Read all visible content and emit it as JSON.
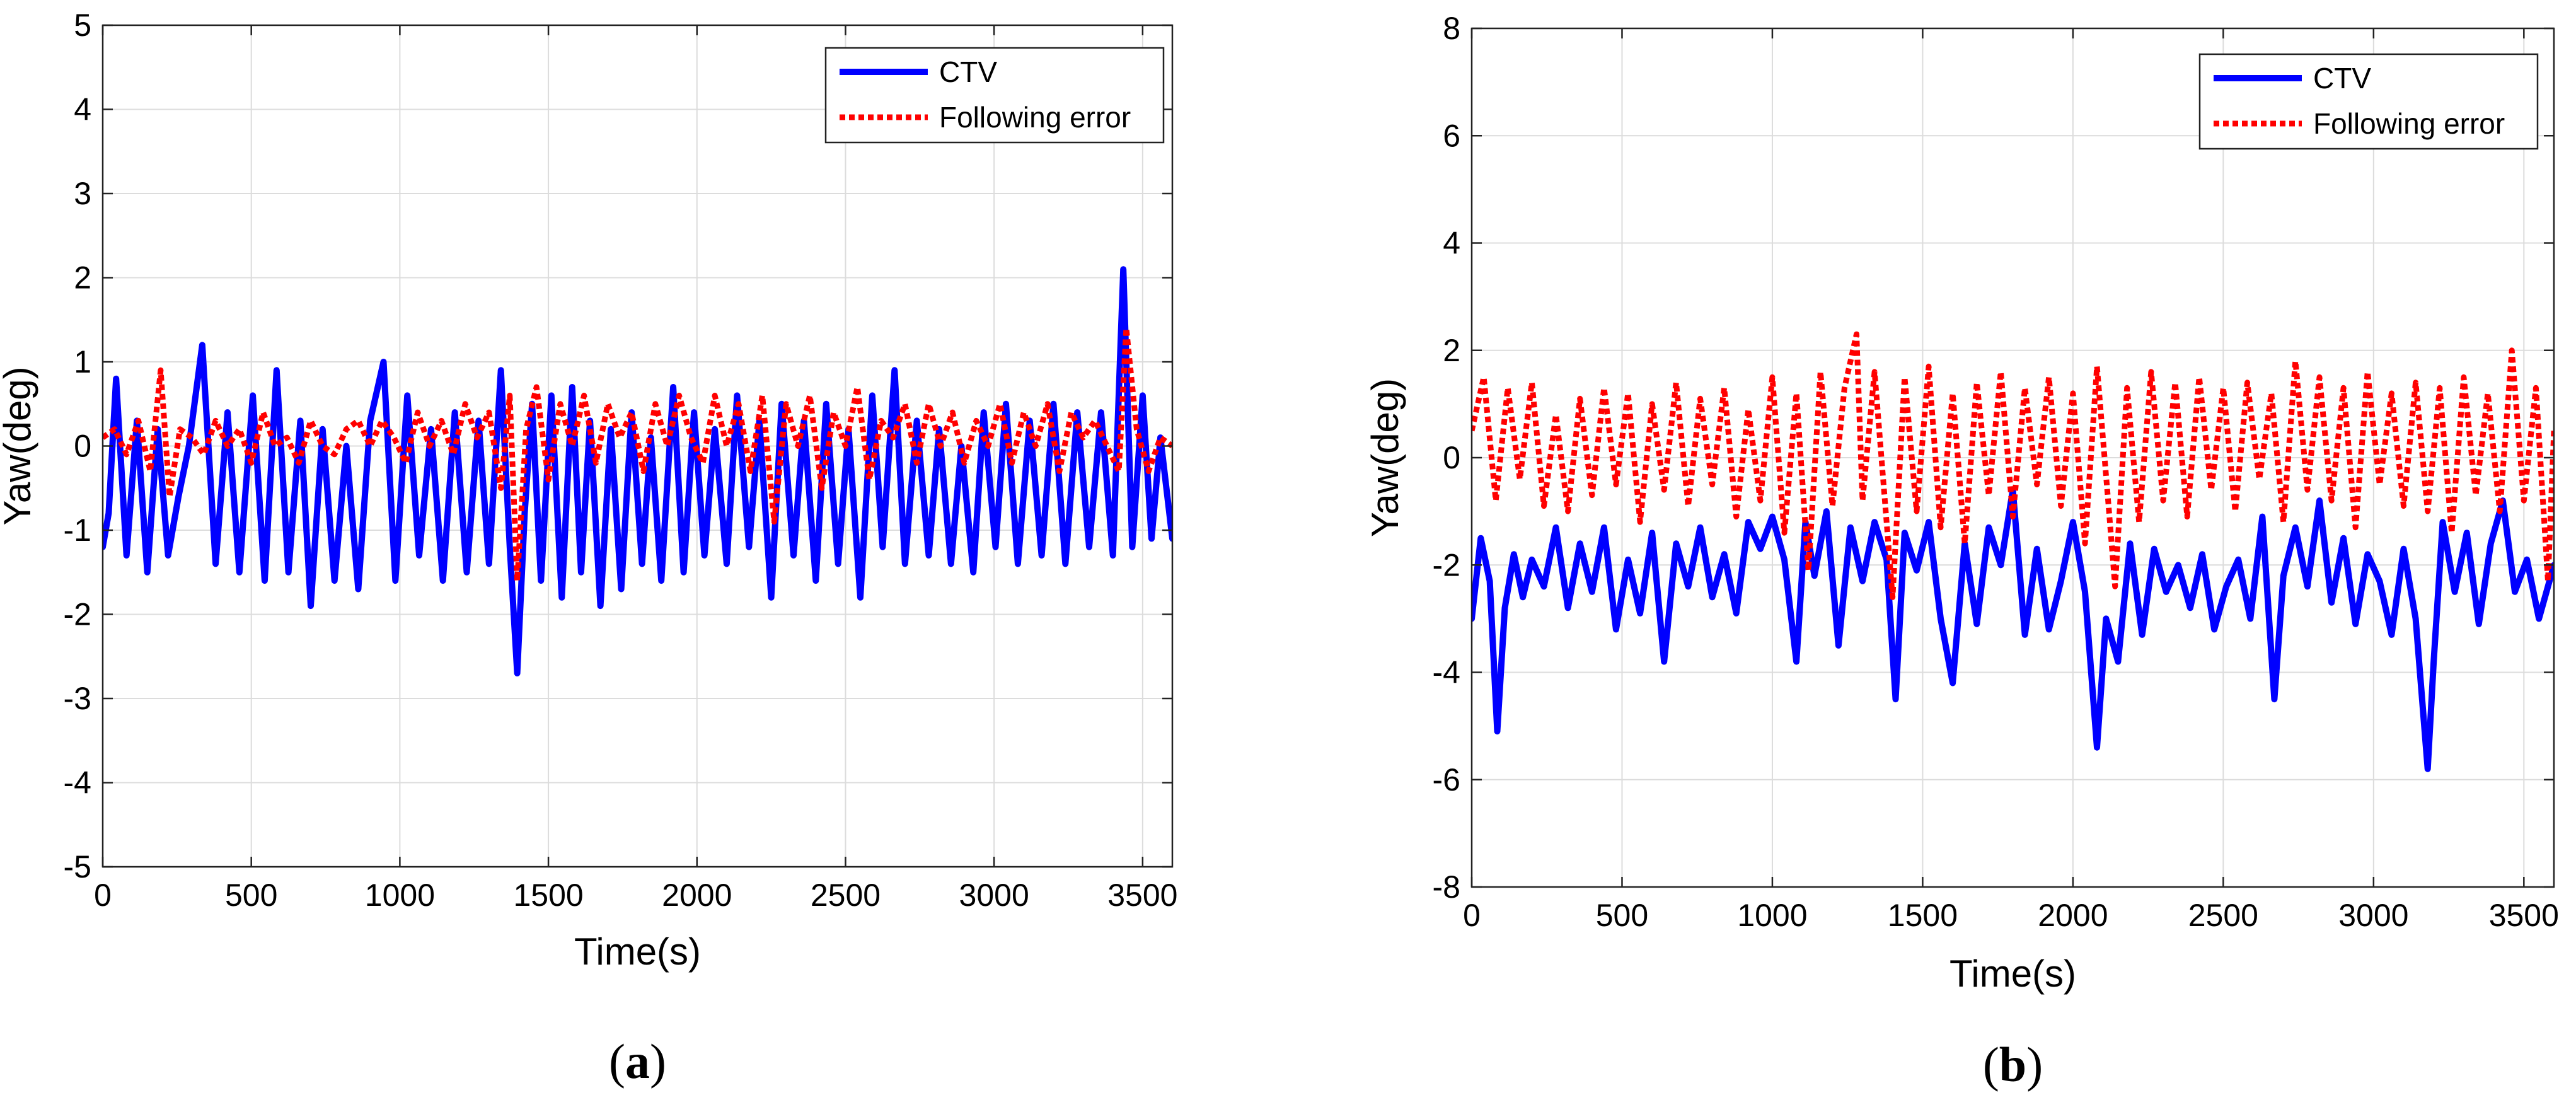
{
  "chart_data": [
    {
      "type": "line",
      "panel": "(a)",
      "panel_letter": "a",
      "xlabel": "Time(s)",
      "ylabel": "Yaw(deg)",
      "xlim": [
        0,
        3600
      ],
      "ylim": [
        -5,
        5
      ],
      "xticks": [
        0,
        500,
        1000,
        1500,
        2000,
        2500,
        3000,
        3500
      ],
      "yticks": [
        -5,
        -4,
        -3,
        -2,
        -1,
        0,
        1,
        2,
        3,
        4,
        5
      ],
      "grid": true,
      "legend_position": "top-right",
      "series": [
        {
          "name": "CTV",
          "style": "solid",
          "color": "#0000ff",
          "x": [
            0,
            20,
            45,
            80,
            115,
            150,
            185,
            220,
            255,
            290,
            335,
            380,
            420,
            460,
            505,
            545,
            585,
            625,
            665,
            700,
            740,
            780,
            820,
            860,
            900,
            945,
            985,
            1025,
            1065,
            1105,
            1145,
            1185,
            1225,
            1265,
            1300,
            1340,
            1370,
            1395,
            1420,
            1445,
            1475,
            1510,
            1545,
            1580,
            1610,
            1640,
            1675,
            1710,
            1745,
            1780,
            1815,
            1845,
            1880,
            1920,
            1955,
            1990,
            2025,
            2060,
            2100,
            2135,
            2175,
            2210,
            2250,
            2285,
            2325,
            2360,
            2400,
            2435,
            2475,
            2510,
            2550,
            2590,
            2625,
            2665,
            2700,
            2740,
            2780,
            2815,
            2855,
            2890,
            2930,
            2965,
            3005,
            3040,
            3080,
            3120,
            3160,
            3200,
            3240,
            3280,
            3320,
            3360,
            3400,
            3435,
            3465,
            3500,
            3530,
            3560,
            3600
          ],
          "y": [
            -1.2,
            -0.8,
            0.8,
            -1.3,
            0.3,
            -1.5,
            0.2,
            -1.3,
            -0.6,
            0.0,
            1.2,
            -1.4,
            0.4,
            -1.5,
            0.6,
            -1.6,
            0.9,
            -1.5,
            0.3,
            -1.9,
            0.2,
            -1.6,
            0.0,
            -1.7,
            0.3,
            1.0,
            -1.6,
            0.6,
            -1.3,
            0.2,
            -1.6,
            0.4,
            -1.5,
            0.3,
            -1.4,
            0.9,
            -1.2,
            -2.7,
            -0.8,
            0.5,
            -1.6,
            0.6,
            -1.8,
            0.7,
            -1.5,
            0.3,
            -1.9,
            0.2,
            -1.7,
            0.4,
            -1.4,
            0.1,
            -1.6,
            0.7,
            -1.5,
            0.4,
            -1.3,
            0.2,
            -1.4,
            0.6,
            -1.2,
            0.3,
            -1.8,
            0.5,
            -1.3,
            0.3,
            -1.6,
            0.5,
            -1.4,
            0.2,
            -1.8,
            0.6,
            -1.2,
            0.9,
            -1.4,
            0.3,
            -1.3,
            0.2,
            -1.4,
            0.0,
            -1.5,
            0.4,
            -1.2,
            0.5,
            -1.4,
            0.3,
            -1.3,
            0.5,
            -1.4,
            0.4,
            -1.2,
            0.4,
            -1.3,
            2.1,
            -1.2,
            0.6,
            -1.1,
            0.1,
            -1.1
          ]
        },
        {
          "name": "Following error",
          "style": "dotted",
          "color": "#ff0000",
          "x": [
            0,
            40,
            80,
            120,
            160,
            195,
            225,
            260,
            300,
            340,
            380,
            420,
            460,
            500,
            540,
            580,
            620,
            660,
            700,
            740,
            780,
            820,
            860,
            900,
            940,
            980,
            1020,
            1060,
            1100,
            1140,
            1180,
            1220,
            1260,
            1300,
            1340,
            1370,
            1395,
            1425,
            1460,
            1500,
            1540,
            1580,
            1620,
            1660,
            1700,
            1740,
            1780,
            1820,
            1860,
            1900,
            1940,
            1980,
            2020,
            2060,
            2100,
            2140,
            2180,
            2220,
            2260,
            2300,
            2340,
            2380,
            2420,
            2460,
            2500,
            2540,
            2580,
            2620,
            2660,
            2700,
            2740,
            2780,
            2820,
            2860,
            2900,
            2940,
            2980,
            3020,
            3060,
            3100,
            3140,
            3180,
            3220,
            3260,
            3300,
            3340,
            3380,
            3420,
            3445,
            3480,
            3520,
            3560,
            3600
          ],
          "y": [
            0.1,
            0.2,
            -0.1,
            0.3,
            -0.3,
            0.9,
            -0.6,
            0.2,
            0.1,
            -0.1,
            0.3,
            0.0,
            0.2,
            -0.2,
            0.4,
            0.0,
            0.1,
            -0.2,
            0.3,
            0.0,
            -0.1,
            0.2,
            0.3,
            0.0,
            0.3,
            0.1,
            -0.2,
            0.4,
            0.0,
            0.3,
            -0.1,
            0.5,
            0.1,
            0.4,
            -0.5,
            0.6,
            -1.6,
            0.2,
            0.7,
            -0.4,
            0.5,
            0.0,
            0.6,
            -0.2,
            0.5,
            0.1,
            0.4,
            -0.3,
            0.5,
            0.0,
            0.6,
            0.1,
            -0.2,
            0.6,
            0.0,
            0.5,
            -0.3,
            0.6,
            -0.9,
            0.5,
            0.0,
            0.6,
            -0.5,
            0.4,
            0.0,
            0.7,
            -0.4,
            0.3,
            0.1,
            0.5,
            -0.2,
            0.5,
            0.0,
            0.4,
            -0.2,
            0.3,
            0.0,
            0.5,
            -0.2,
            0.4,
            0.0,
            0.5,
            -0.3,
            0.4,
            0.1,
            0.3,
            0.0,
            -0.3,
            1.4,
            0.2,
            -0.3,
            0.1,
            0.0
          ]
        }
      ]
    },
    {
      "type": "line",
      "panel": "(b)",
      "panel_letter": "b",
      "xlabel": "Time(s)",
      "ylabel": "Yaw(deg)",
      "xlim": [
        0,
        3600
      ],
      "ylim": [
        -8,
        8
      ],
      "xticks": [
        0,
        500,
        1000,
        1500,
        2000,
        2500,
        3000,
        3500
      ],
      "yticks": [
        -8,
        -6,
        -4,
        -2,
        0,
        2,
        4,
        6,
        8
      ],
      "grid": true,
      "legend_position": "top-right",
      "series": [
        {
          "name": "CTV",
          "style": "solid",
          "color": "#0000ff",
          "x": [
            0,
            30,
            60,
            85,
            110,
            140,
            170,
            200,
            240,
            280,
            320,
            360,
            400,
            440,
            480,
            520,
            560,
            600,
            640,
            680,
            720,
            760,
            800,
            840,
            880,
            920,
            960,
            1000,
            1040,
            1080,
            1110,
            1140,
            1180,
            1220,
            1260,
            1300,
            1340,
            1380,
            1410,
            1440,
            1480,
            1520,
            1560,
            1600,
            1640,
            1680,
            1720,
            1760,
            1800,
            1840,
            1880,
            1920,
            1960,
            2000,
            2040,
            2080,
            2110,
            2150,
            2190,
            2230,
            2270,
            2310,
            2350,
            2390,
            2430,
            2470,
            2510,
            2550,
            2590,
            2630,
            2670,
            2700,
            2740,
            2780,
            2820,
            2860,
            2900,
            2940,
            2980,
            3020,
            3060,
            3100,
            3140,
            3180,
            3200,
            3230,
            3270,
            3310,
            3350,
            3390,
            3430,
            3470,
            3510,
            3550,
            3600
          ],
          "y": [
            -3.0,
            -1.5,
            -2.3,
            -5.1,
            -2.8,
            -1.8,
            -2.6,
            -1.9,
            -2.4,
            -1.3,
            -2.8,
            -1.6,
            -2.5,
            -1.3,
            -3.2,
            -1.9,
            -2.9,
            -1.4,
            -3.8,
            -1.6,
            -2.4,
            -1.3,
            -2.6,
            -1.8,
            -2.9,
            -1.2,
            -1.7,
            -1.1,
            -1.9,
            -3.8,
            -1.2,
            -2.2,
            -1.0,
            -3.5,
            -1.3,
            -2.3,
            -1.2,
            -1.9,
            -4.5,
            -1.4,
            -2.1,
            -1.2,
            -3.0,
            -4.2,
            -1.6,
            -3.1,
            -1.3,
            -2.0,
            -0.6,
            -3.3,
            -1.7,
            -3.2,
            -2.3,
            -1.2,
            -2.5,
            -5.4,
            -3.0,
            -3.8,
            -1.6,
            -3.3,
            -1.7,
            -2.5,
            -2.0,
            -2.8,
            -1.8,
            -3.2,
            -2.4,
            -1.9,
            -3.0,
            -1.1,
            -4.5,
            -2.2,
            -1.3,
            -2.4,
            -0.8,
            -2.7,
            -1.5,
            -3.1,
            -1.8,
            -2.3,
            -3.3,
            -1.7,
            -3.0,
            -5.8,
            -3.8,
            -1.2,
            -2.5,
            -1.4,
            -3.1,
            -1.6,
            -0.8,
            -2.5,
            -1.9,
            -3.0,
            -2.0
          ]
        },
        {
          "name": "Following error",
          "style": "dotted",
          "color": "#ff0000",
          "x": [
            0,
            40,
            80,
            120,
            160,
            200,
            240,
            280,
            320,
            360,
            400,
            440,
            480,
            520,
            560,
            600,
            640,
            680,
            720,
            760,
            800,
            840,
            880,
            920,
            960,
            1000,
            1040,
            1080,
            1120,
            1160,
            1200,
            1240,
            1280,
            1300,
            1340,
            1380,
            1400,
            1440,
            1480,
            1520,
            1560,
            1600,
            1640,
            1680,
            1720,
            1760,
            1800,
            1840,
            1880,
            1920,
            1960,
            2000,
            2040,
            2080,
            2120,
            2140,
            2180,
            2220,
            2260,
            2300,
            2340,
            2380,
            2420,
            2460,
            2500,
            2540,
            2580,
            2620,
            2660,
            2700,
            2740,
            2780,
            2820,
            2860,
            2900,
            2940,
            2980,
            3020,
            3060,
            3100,
            3140,
            3180,
            3220,
            3260,
            3300,
            3340,
            3380,
            3420,
            3460,
            3500,
            3540,
            3580,
            3600
          ],
          "y": [
            0.5,
            1.5,
            -0.8,
            1.3,
            -0.4,
            1.4,
            -0.9,
            0.8,
            -1.0,
            1.1,
            -0.7,
            1.3,
            -0.5,
            1.2,
            -1.2,
            1.0,
            -0.6,
            1.4,
            -0.9,
            1.1,
            -0.5,
            1.3,
            -1.1,
            0.9,
            -0.8,
            1.5,
            -1.4,
            1.2,
            -2.1,
            1.6,
            -0.9,
            1.3,
            2.3,
            -0.8,
            1.6,
            -1.2,
            -2.6,
            1.5,
            -1.0,
            1.7,
            -1.3,
            1.2,
            -1.6,
            1.4,
            -0.7,
            1.6,
            -1.1,
            1.3,
            -0.5,
            1.5,
            -0.9,
            1.2,
            -1.6,
            1.7,
            -1.0,
            -2.4,
            1.3,
            -1.2,
            1.6,
            -0.8,
            1.4,
            -1.1,
            1.5,
            -0.6,
            1.3,
            -1.0,
            1.4,
            -0.4,
            1.2,
            -1.2,
            1.8,
            -0.6,
            1.5,
            -0.8,
            1.3,
            -1.3,
            1.6,
            -0.5,
            1.2,
            -0.9,
            1.4,
            -1.0,
            1.3,
            -1.4,
            1.5,
            -0.7,
            1.2,
            -1.0,
            2.0,
            -0.8,
            1.3,
            -2.3,
            0.5
          ]
        }
      ]
    }
  ]
}
